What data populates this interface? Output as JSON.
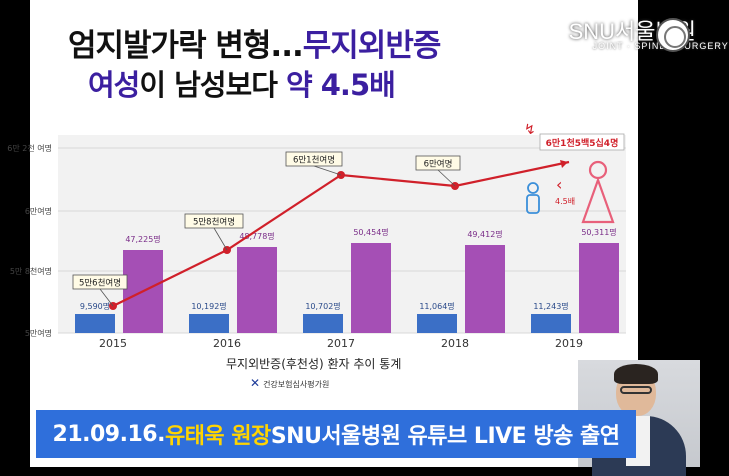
{
  "title": {
    "line1_prefix": "엄지발가락 변형...",
    "line1_highlight": "무지외반증",
    "line2_highlight": "여성",
    "line2_mid": "이 남성보다 ",
    "line2_suffix": "약 4.5배"
  },
  "brand": {
    "name": "SNU서울병원",
    "tagline": "JOINT · SPINE · SURGERY"
  },
  "chart_data": {
    "type": "bar",
    "categories": [
      "2015",
      "2016",
      "2017",
      "2018",
      "2019"
    ],
    "y_tick_labels": [
      "6만 2천 여명",
      "6만여명",
      "5만 8천여명",
      "5만여명"
    ],
    "series": [
      {
        "values": [
          9590,
          10192,
          10702,
          11064,
          11243
        ],
        "labels": [
          "9,590명",
          "10,192명",
          "10,702명",
          "11,064명",
          "11,243명"
        ],
        "color": "#3b6fc6"
      },
      {
        "values": [
          47225,
          48778,
          50454,
          49412,
          50311
        ],
        "labels": [
          "47,225명",
          "48,778명",
          "50,454명",
          "49,412명",
          "50,311명"
        ],
        "color": "#a54fb5"
      }
    ],
    "total_line": {
      "labels": [
        "5만6천여명",
        "5만8천여명",
        "6만1천여명",
        "6만여명",
        "6만1천5백5십4명"
      ],
      "color": "#d0202a"
    },
    "ratio_label": "4.5배",
    "grid": true
  },
  "caption": "무지외반증(후천성) 환자 추이 통계",
  "source": "건강보험심사평가원",
  "banner": {
    "date": "21.09.16. ",
    "highlight": "유태욱 원장",
    "rest": " SNU서울병원 유튜브 LIVE 방송 출연"
  },
  "colors": {
    "title_accent": "#3b1fa0",
    "banner_bg": "#2f6fdb",
    "banner_accent": "#ffd400"
  }
}
